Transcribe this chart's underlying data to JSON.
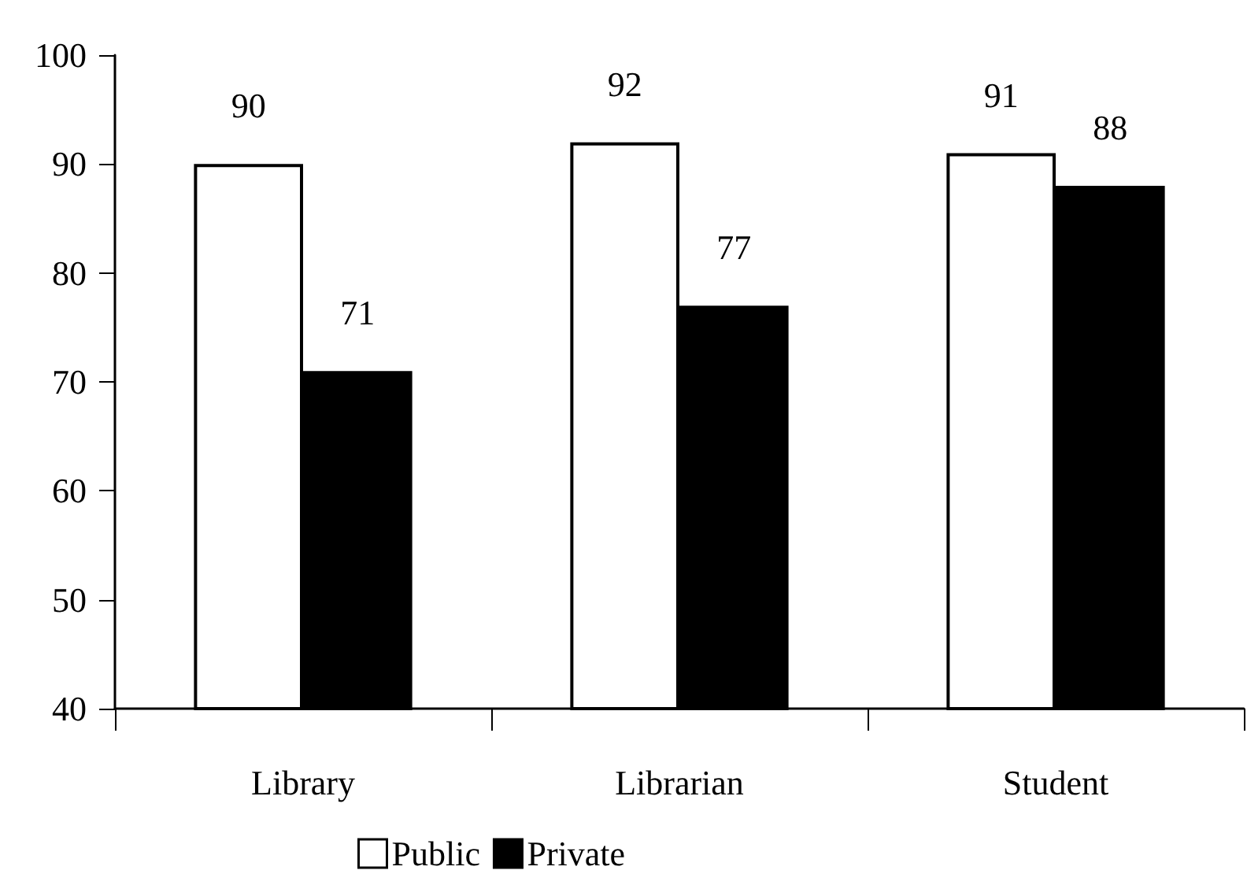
{
  "chart_data": {
    "type": "bar",
    "categories": [
      "Library",
      "Librarian",
      "Student"
    ],
    "series": [
      {
        "name": "Public",
        "color": "#ffffff",
        "values": [
          90,
          92,
          91
        ]
      },
      {
        "name": "Private",
        "color": "#000000",
        "values": [
          71,
          77,
          88
        ]
      }
    ],
    "ylim": [
      40,
      100
    ],
    "yticks": [
      40,
      50,
      60,
      70,
      80,
      90,
      100
    ],
    "data_labels": true,
    "grid": false,
    "legend": "bottom"
  }
}
